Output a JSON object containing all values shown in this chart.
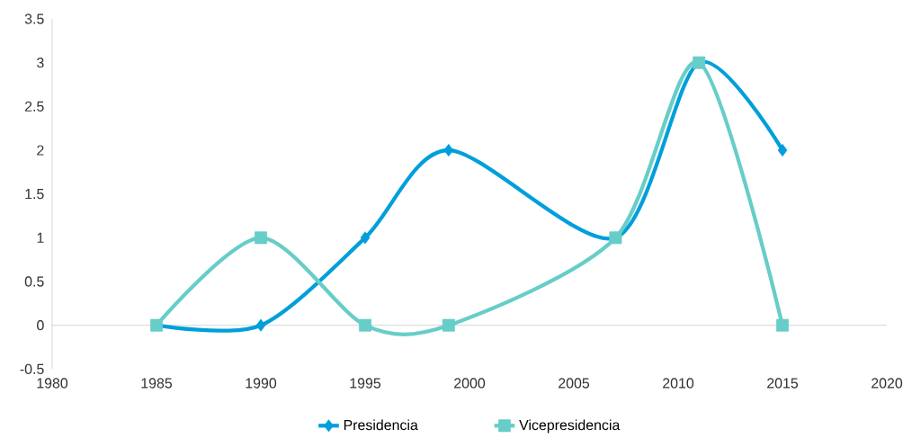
{
  "chart_data": {
    "type": "line",
    "x": [
      1985,
      1990,
      1995,
      1999,
      2007,
      2011,
      2015
    ],
    "series": [
      {
        "name": "Presidencia",
        "color": "#009fdb",
        "values": [
          0,
          0,
          1,
          2,
          1,
          3,
          2
        ],
        "marker": "diamond"
      },
      {
        "name": "Vicepresidencia",
        "color": "#67cdc8",
        "values": [
          0,
          1,
          0,
          0,
          1,
          3,
          0
        ],
        "marker": "square"
      }
    ],
    "xlim": [
      1980,
      2020
    ],
    "xticks": [
      1980,
      1985,
      1990,
      1995,
      2000,
      2005,
      2010,
      2015,
      2020
    ],
    "ylim": [
      -0.5,
      3.5
    ],
    "yticks": [
      -0.5,
      0,
      0.5,
      1,
      1.5,
      2,
      2.5,
      3,
      3.5
    ],
    "legend": "bottom",
    "line_style": "solid"
  }
}
